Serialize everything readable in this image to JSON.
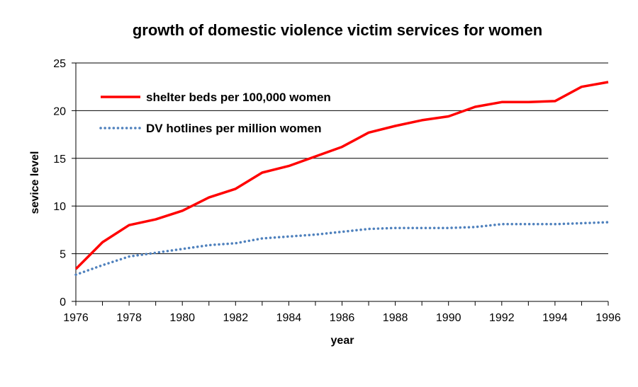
{
  "chart_data": {
    "type": "line",
    "title": "growth of domestic violence victim services for women",
    "xlabel": "year",
    "ylabel": "sevice level",
    "xlim": [
      1976,
      1996
    ],
    "ylim": [
      0,
      25
    ],
    "x_ticks": [
      "1976",
      "1978",
      "1980",
      "1982",
      "1984",
      "1986",
      "1988",
      "1990",
      "1992",
      "1994",
      "1996"
    ],
    "y_ticks": [
      "0",
      "5",
      "10",
      "15",
      "20",
      "25"
    ],
    "grid": "horizontal",
    "legend_position": "top-left",
    "x": [
      1976,
      1977,
      1978,
      1979,
      1980,
      1981,
      1982,
      1983,
      1984,
      1985,
      1986,
      1987,
      1988,
      1989,
      1990,
      1991,
      1992,
      1993,
      1994,
      1995,
      1996
    ],
    "series": [
      {
        "name": "shelter beds per 100,000 women",
        "color": "#ff0000",
        "style": "solid",
        "values": [
          3.4,
          6.2,
          8.0,
          8.6,
          9.5,
          10.9,
          11.8,
          13.5,
          14.2,
          15.2,
          16.2,
          17.7,
          18.4,
          19.0,
          19.4,
          20.4,
          20.9,
          20.9,
          21.0,
          22.5,
          23.0
        ]
      },
      {
        "name": "DV hotlines per million women",
        "color": "#4f81bd",
        "style": "dotted",
        "values": [
          2.8,
          3.8,
          4.7,
          5.1,
          5.5,
          5.9,
          6.1,
          6.6,
          6.8,
          7.0,
          7.3,
          7.6,
          7.7,
          7.7,
          7.7,
          7.8,
          8.1,
          8.1,
          8.1,
          8.2,
          8.3
        ]
      }
    ]
  }
}
